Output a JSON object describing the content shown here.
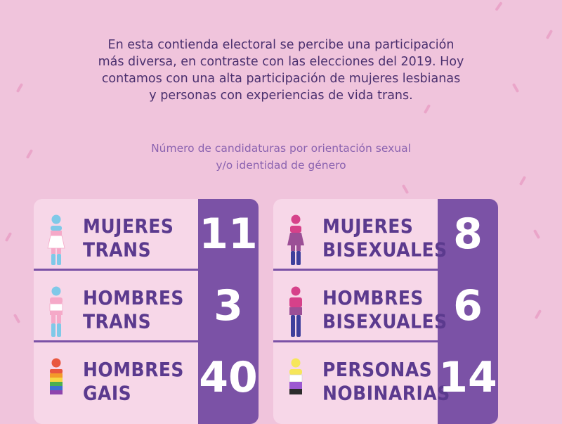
{
  "intro": {
    "lines": [
      "En esta contienda electoral se percibe una participación",
      "más diversa, en contraste con las elecciones del 2019. Hoy",
      "contamos con una alta participación de mujeres lesbianas",
      "y personas con experiencias de vida trans."
    ]
  },
  "subtitle": {
    "lines": [
      "Número de candidaturas por orientación sexual",
      "y/o identidad de género"
    ]
  },
  "colors": {
    "background": "#f0c4dc",
    "card": "#f7d7e8",
    "accent_purple": "#7b52a6",
    "label_purple": "#5b3a8e",
    "trans_blue": "#7fc9e8",
    "trans_pink": "#f5a9c8",
    "bi_pink": "#d6418a",
    "bi_purple": "#9b4f96",
    "bi_blue": "#3e3f9c",
    "nb_yellow": "#f6e65a",
    "nb_purple": "#9c59d1",
    "nb_dark": "#2c2c2c"
  },
  "categories": {
    "left": [
      {
        "label_lines": [
          "MUJERES",
          "TRANS"
        ],
        "count": "11",
        "icon": "trans-woman-figure-icon"
      },
      {
        "label_lines": [
          "HOMBRES",
          "TRANS"
        ],
        "count": "3",
        "icon": "trans-man-figure-icon"
      },
      {
        "label_lines": [
          "HOMBRES",
          "GAIS"
        ],
        "count": "40",
        "icon": "rainbow-man-figure-icon"
      }
    ],
    "right": [
      {
        "label_lines": [
          "MUJERES",
          "BISEXUALES"
        ],
        "count": "8",
        "icon": "bisexual-woman-figure-icon"
      },
      {
        "label_lines": [
          "HOMBRES",
          "BISEXUALES"
        ],
        "count": "6",
        "icon": "bisexual-man-figure-icon"
      },
      {
        "label_lines": [
          "PERSONAS",
          "NOBINARIAS"
        ],
        "count": "14",
        "icon": "nonbinary-figure-icon"
      }
    ]
  }
}
